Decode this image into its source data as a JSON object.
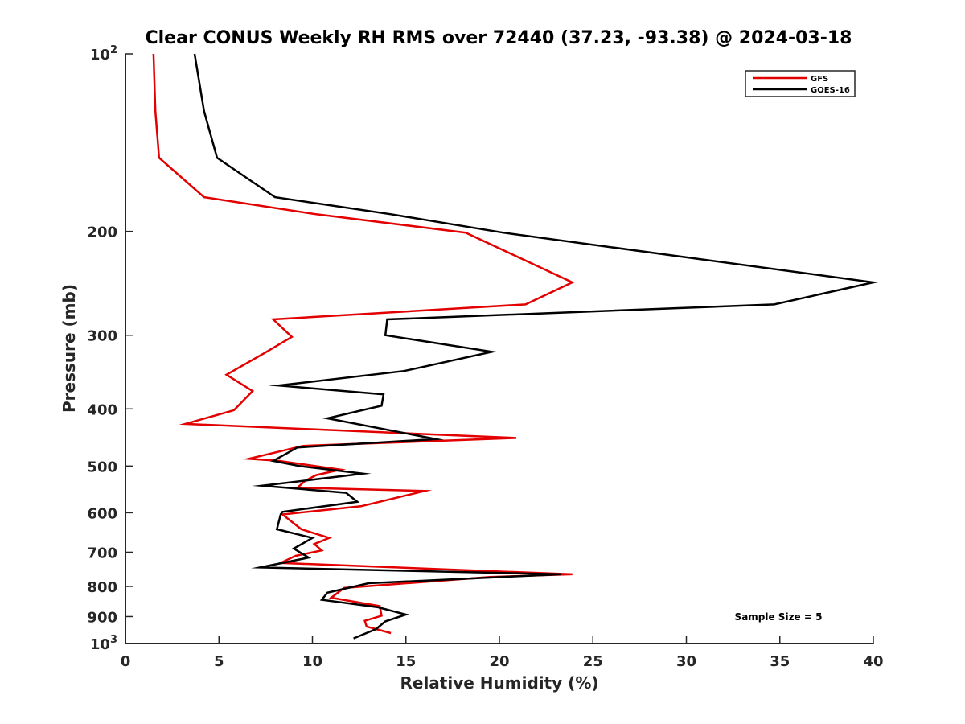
{
  "chart_data": {
    "type": "line",
    "title": "Clear CONUS Weekly RH RMS over 72440 (37.23, -93.38) @ 2024-03-18",
    "xlabel": "Relative Humidity (%)",
    "ylabel": "Pressure (mb)",
    "xlim": [
      0,
      40
    ],
    "ylim": [
      100,
      1000
    ],
    "y_scale": "log",
    "y_reversed": true,
    "x_ticks": [
      "0",
      "5",
      "10",
      "15",
      "20",
      "25",
      "30",
      "35",
      "40"
    ],
    "y_ticks": [
      {
        "value": 100,
        "label": "10",
        "sup": "2"
      },
      {
        "value": 200,
        "label": "200",
        "sup": ""
      },
      {
        "value": 300,
        "label": "300",
        "sup": ""
      },
      {
        "value": 400,
        "label": "400",
        "sup": ""
      },
      {
        "value": 500,
        "label": "500",
        "sup": ""
      },
      {
        "value": 600,
        "label": "600",
        "sup": ""
      },
      {
        "value": 700,
        "label": "700",
        "sup": ""
      },
      {
        "value": 800,
        "label": "800",
        "sup": ""
      },
      {
        "value": 900,
        "label": "900",
        "sup": ""
      },
      {
        "value": 1000,
        "label": "10",
        "sup": "3"
      }
    ],
    "grid": false,
    "legend_position": "top-right",
    "annotation": "Sample Size = 5",
    "series": [
      {
        "name": "GFS",
        "color": "#e30000",
        "points": [
          [
            1.5,
            100
          ],
          [
            1.6,
            125
          ],
          [
            1.8,
            150
          ],
          [
            4.2,
            175
          ],
          [
            10.2,
            187
          ],
          [
            18.2,
            201
          ],
          [
            23.9,
            244
          ],
          [
            21.4,
            266
          ],
          [
            7.9,
            282
          ],
          [
            8.9,
            302
          ],
          [
            7.4,
            322
          ],
          [
            5.4,
            350
          ],
          [
            6.8,
            373
          ],
          [
            5.8,
            402
          ],
          [
            3.2,
            424
          ],
          [
            20.9,
            448
          ],
          [
            9.5,
            462
          ],
          [
            6.6,
            486
          ],
          [
            8.2,
            490
          ],
          [
            11.5,
            507
          ],
          [
            10.2,
            518
          ],
          [
            9.6,
            530
          ],
          [
            9.2,
            544
          ],
          [
            16.0,
            551
          ],
          [
            12.6,
            585
          ],
          [
            8.4,
            604
          ],
          [
            9.4,
            640
          ],
          [
            10.9,
            662
          ],
          [
            10.1,
            678
          ],
          [
            10.5,
            695
          ],
          [
            9.1,
            710
          ],
          [
            8.3,
            730
          ],
          [
            23.9,
            763
          ],
          [
            19.5,
            771
          ],
          [
            11.7,
            805
          ],
          [
            11.0,
            836
          ],
          [
            13.6,
            864
          ],
          [
            13.7,
            897
          ],
          [
            12.8,
            915
          ],
          [
            12.9,
            936
          ],
          [
            13.4,
            945
          ],
          [
            14.2,
            960
          ]
        ]
      },
      {
        "name": "GOES-16",
        "color": "#000000",
        "points": [
          [
            3.7,
            100
          ],
          [
            4.2,
            125
          ],
          [
            4.9,
            150
          ],
          [
            8.0,
            175
          ],
          [
            14.2,
            187
          ],
          [
            20.2,
            201
          ],
          [
            29.4,
            220
          ],
          [
            40.0,
            244
          ],
          [
            34.7,
            266
          ],
          [
            14.0,
            282
          ],
          [
            13.9,
            300
          ],
          [
            19.6,
            320
          ],
          [
            14.9,
            345
          ],
          [
            8.2,
            365
          ],
          [
            13.8,
            378
          ],
          [
            13.7,
            395
          ],
          [
            10.8,
            415
          ],
          [
            16.6,
            450
          ],
          [
            9.2,
            465
          ],
          [
            7.9,
            490
          ],
          [
            9.3,
            500
          ],
          [
            12.7,
            515
          ],
          [
            7.3,
            540
          ],
          [
            11.8,
            555
          ],
          [
            12.4,
            575
          ],
          [
            8.4,
            598
          ],
          [
            8.3,
            604
          ],
          [
            8.1,
            640
          ],
          [
            10.0,
            662
          ],
          [
            9.0,
            690
          ],
          [
            9.8,
            715
          ],
          [
            7.2,
            743
          ],
          [
            23.3,
            763
          ],
          [
            13.0,
            790
          ],
          [
            10.8,
            820
          ],
          [
            10.5,
            843
          ],
          [
            13.5,
            868
          ],
          [
            15.0,
            893
          ],
          [
            13.9,
            917
          ],
          [
            13.4,
            945
          ],
          [
            12.2,
            980
          ]
        ]
      }
    ]
  }
}
